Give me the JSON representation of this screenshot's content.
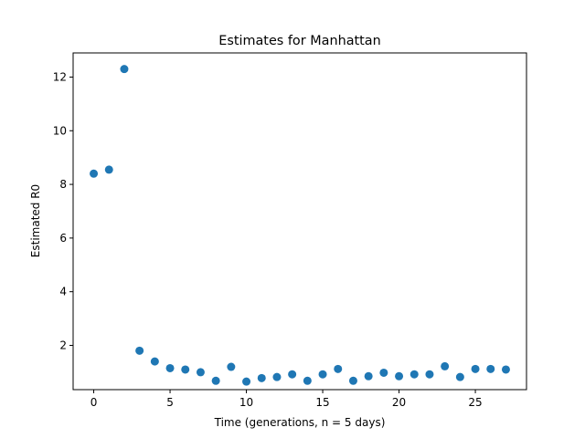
{
  "chart_data": {
    "type": "scatter",
    "title": "Estimates for Manhattan",
    "xlabel": "Time (generations, n = 5 days)",
    "ylabel": "Estimated R0",
    "xlim": [
      -1.35,
      28.35
    ],
    "ylim": [
      0.35,
      12.9
    ],
    "xticks": [
      0,
      5,
      10,
      15,
      20,
      25
    ],
    "yticks": [
      2,
      4,
      6,
      8,
      10,
      12
    ],
    "grid": false,
    "series": [
      {
        "color": "#1f77b4",
        "x": [
          0,
          1,
          2,
          3,
          4,
          5,
          6,
          7,
          8,
          9,
          10,
          11,
          12,
          13,
          14,
          15,
          16,
          17,
          18,
          19,
          20,
          21,
          22,
          23,
          24,
          25,
          26,
          27
        ],
        "y": [
          8.4,
          8.55,
          12.3,
          1.8,
          1.4,
          1.15,
          1.1,
          1.0,
          0.68,
          1.2,
          0.65,
          0.78,
          0.82,
          0.92,
          0.68,
          0.92,
          1.12,
          0.68,
          0.85,
          0.98,
          0.85,
          0.92,
          0.92,
          1.22,
          0.82,
          1.12,
          1.12,
          1.1
        ]
      }
    ]
  }
}
